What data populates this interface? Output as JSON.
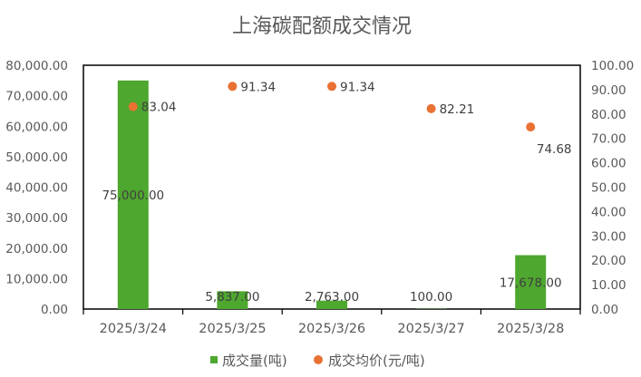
{
  "chart_data": {
    "type": "bar",
    "title": "上海碳配额成交情况",
    "categories": [
      "2025/3/24",
      "2025/3/25",
      "2025/3/26",
      "2025/3/27",
      "2025/3/28"
    ],
    "series": [
      {
        "name": "成交量(吨)",
        "type": "bar",
        "axis": "left",
        "color": "#4EA72E",
        "values": [
          75000,
          5837,
          2763,
          100,
          17678
        ],
        "labels": [
          "75,000.00",
          "5,837.00",
          "2,763.00",
          "100.00",
          "17,678.00"
        ]
      },
      {
        "name": "成交均价(元/吨)",
        "type": "scatter",
        "axis": "right",
        "color": "#E97132",
        "values": [
          83.04,
          91.34,
          91.34,
          82.21,
          74.68
        ],
        "labels": [
          "83.04",
          "91.34",
          "91.34",
          "82.21",
          "74.68"
        ]
      }
    ],
    "y_left": {
      "lim": [
        0,
        80000
      ],
      "ticks": [
        "0.00",
        "10,000.00",
        "20,000.00",
        "30,000.00",
        "40,000.00",
        "50,000.00",
        "60,000.00",
        "70,000.00",
        "80,000.00"
      ]
    },
    "y_right": {
      "lim": [
        0,
        100
      ],
      "ticks": [
        "0.00",
        "10.00",
        "20.00",
        "30.00",
        "40.00",
        "50.00",
        "60.00",
        "70.00",
        "80.00",
        "90.00",
        "100.00"
      ]
    },
    "grid": false,
    "legend": "bottom"
  }
}
